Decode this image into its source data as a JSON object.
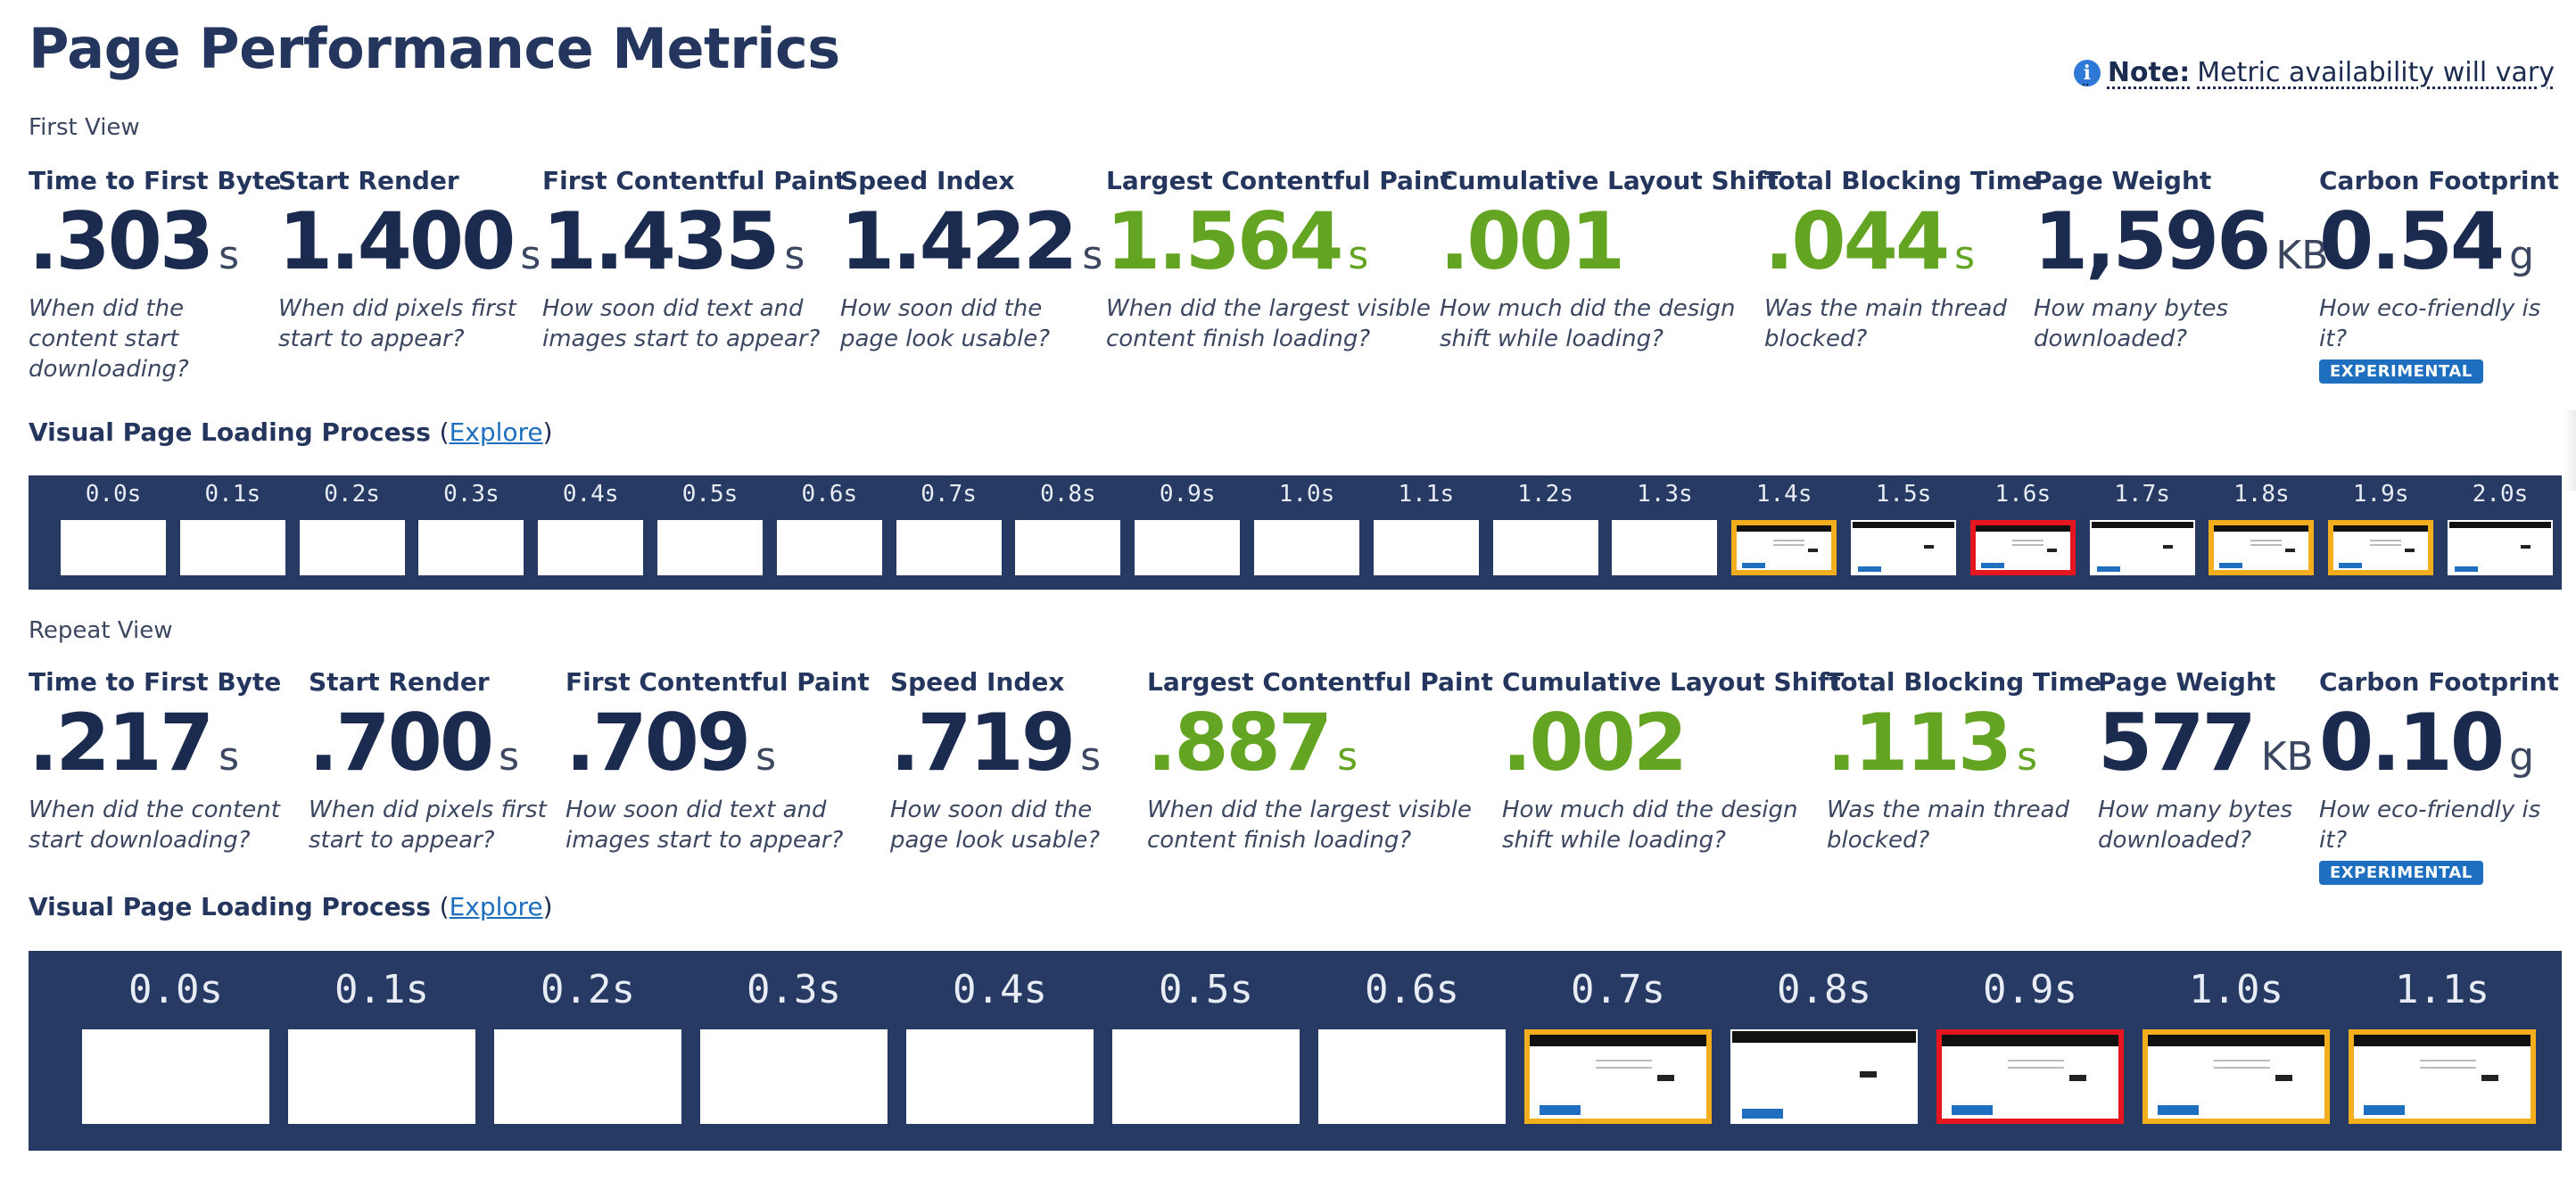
{
  "title": "Page Performance Metrics",
  "note": {
    "label": "Note:",
    "text": "Metric availability will vary"
  },
  "first_view": {
    "label": "First View",
    "metrics": [
      {
        "title": "Time to First Byte",
        "value": ".303",
        "unit": "s",
        "good": false,
        "desc": [
          "When did the",
          "content start",
          "downloading?"
        ]
      },
      {
        "title": "Start Render",
        "value": "1.400",
        "unit": "s",
        "good": false,
        "desc": [
          "When did pixels first",
          "start to appear?"
        ]
      },
      {
        "title": "First Contentful Paint",
        "value": "1.435",
        "unit": "s",
        "good": false,
        "desc": [
          "How soon did text and",
          "images start to appear?"
        ]
      },
      {
        "title": "Speed Index",
        "value": "1.422",
        "unit": "s",
        "good": false,
        "desc": [
          "How soon did the",
          "page look usable?"
        ]
      },
      {
        "title": "Largest Contentful Paint",
        "value": "1.564",
        "unit": "s",
        "good": true,
        "desc": [
          "When did the largest visible",
          "content finish loading?"
        ]
      },
      {
        "title": "Cumulative Layout Shift",
        "value": ".001",
        "unit": "",
        "good": true,
        "desc": [
          "How much did the design",
          "shift while loading?"
        ]
      },
      {
        "title": "Total Blocking Time",
        "value": ".044",
        "unit": "s",
        "good": true,
        "desc": [
          "Was the main thread",
          "blocked?"
        ]
      },
      {
        "title": "Page Weight",
        "value": "1,596",
        "unit": "KB",
        "good": false,
        "desc": [
          "How many bytes",
          "downloaded?"
        ]
      },
      {
        "title": "Carbon Footprint",
        "value": "0.54",
        "unit": "g",
        "good": false,
        "desc": [
          "How eco-friendly is it?"
        ],
        "badge": "EXPERIMENTAL"
      }
    ],
    "vplp_label": "Visual Page Loading Process",
    "explore_label": "Explore",
    "filmstrip": [
      {
        "time": "0.0s",
        "state": "blank"
      },
      {
        "time": "0.1s",
        "state": "blank"
      },
      {
        "time": "0.2s",
        "state": "blank"
      },
      {
        "time": "0.3s",
        "state": "blank"
      },
      {
        "time": "0.4s",
        "state": "blank"
      },
      {
        "time": "0.5s",
        "state": "blank"
      },
      {
        "time": "0.6s",
        "state": "blank"
      },
      {
        "time": "0.7s",
        "state": "blank"
      },
      {
        "time": "0.8s",
        "state": "blank"
      },
      {
        "time": "0.9s",
        "state": "blank"
      },
      {
        "time": "1.0s",
        "state": "blank"
      },
      {
        "time": "1.1s",
        "state": "blank"
      },
      {
        "time": "1.2s",
        "state": "blank"
      },
      {
        "time": "1.3s",
        "state": "blank"
      },
      {
        "time": "1.4s",
        "state": "changed"
      },
      {
        "time": "1.5s",
        "state": "plain"
      },
      {
        "time": "1.6s",
        "state": "lcp"
      },
      {
        "time": "1.7s",
        "state": "plain"
      },
      {
        "time": "1.8s",
        "state": "changed"
      },
      {
        "time": "1.9s",
        "state": "changed"
      },
      {
        "time": "2.0s",
        "state": "plain"
      }
    ]
  },
  "repeat_view": {
    "label": "Repeat View",
    "metrics": [
      {
        "title": "Time to First Byte",
        "value": ".217",
        "unit": "s",
        "good": false,
        "desc": [
          "When did the content",
          "start downloading?"
        ]
      },
      {
        "title": "Start Render",
        "value": ".700",
        "unit": "s",
        "good": false,
        "desc": [
          "When did pixels first",
          "start to appear?"
        ]
      },
      {
        "title": "First Contentful Paint",
        "value": ".709",
        "unit": "s",
        "good": false,
        "desc": [
          "How soon did text and",
          "images start to appear?"
        ]
      },
      {
        "title": "Speed Index",
        "value": ".719",
        "unit": "s",
        "good": false,
        "desc": [
          "How soon did the",
          "page look usable?"
        ]
      },
      {
        "title": "Largest Contentful Paint",
        "value": ".887",
        "unit": "s",
        "good": true,
        "desc": [
          "When did the largest visible",
          "content finish loading?"
        ]
      },
      {
        "title": "Cumulative Layout Shift",
        "value": ".002",
        "unit": "",
        "good": true,
        "desc": [
          "How much did the design",
          "shift while loading?"
        ]
      },
      {
        "title": "Total Blocking Time",
        "value": ".113",
        "unit": "s",
        "good": true,
        "desc": [
          "Was the main thread",
          "blocked?"
        ]
      },
      {
        "title": "Page Weight",
        "value": "577",
        "unit": "KB",
        "good": false,
        "desc": [
          "How many bytes",
          "downloaded?"
        ]
      },
      {
        "title": "Carbon Footprint",
        "value": "0.10",
        "unit": "g",
        "good": false,
        "desc": [
          "How eco-friendly is it?"
        ],
        "badge": "EXPERIMENTAL"
      }
    ],
    "vplp_label": "Visual Page Loading Process",
    "explore_label": "Explore",
    "filmstrip": [
      {
        "time": "0.0s",
        "state": "blank"
      },
      {
        "time": "0.1s",
        "state": "blank"
      },
      {
        "time": "0.2s",
        "state": "blank"
      },
      {
        "time": "0.3s",
        "state": "blank"
      },
      {
        "time": "0.4s",
        "state": "blank"
      },
      {
        "time": "0.5s",
        "state": "blank"
      },
      {
        "time": "0.6s",
        "state": "blank"
      },
      {
        "time": "0.7s",
        "state": "changed"
      },
      {
        "time": "0.8s",
        "state": "plain"
      },
      {
        "time": "0.9s",
        "state": "lcp"
      },
      {
        "time": "1.0s",
        "state": "changed"
      },
      {
        "time": "1.1s",
        "state": "changed"
      }
    ]
  },
  "colors": {
    "navy": "#24365e",
    "good": "#64a423",
    "strip": "#263a63",
    "changed": "#f2ae1c",
    "lcp": "#e5161d",
    "badge": "#1e6fbf"
  }
}
